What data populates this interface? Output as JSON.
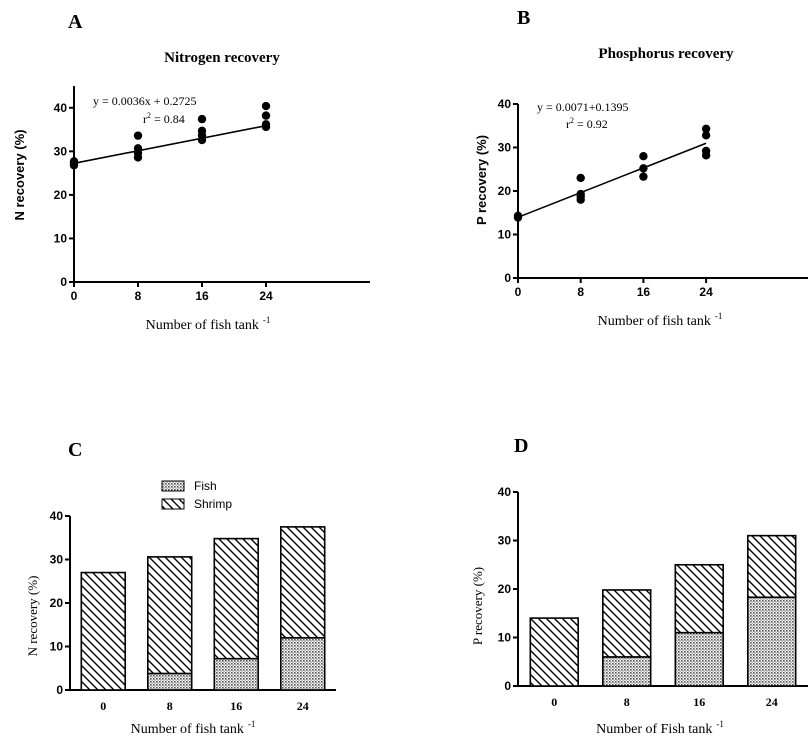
{
  "chart_data": [
    {
      "panel": "A",
      "type": "scatter",
      "title": "Nitrogen recovery",
      "xlabel": "Number of fish tank",
      "xlabel_sup": "-1",
      "ylabel": "N recovery (%)",
      "xlim": [
        0,
        37
      ],
      "ylim": [
        0,
        45
      ],
      "xticks": [
        0,
        8,
        16,
        24
      ],
      "yticks": [
        0,
        10,
        20,
        30,
        40
      ],
      "points": [
        [
          0,
          26.8
        ],
        [
          0,
          27.2
        ],
        [
          0,
          27.7
        ],
        [
          8,
          28.6
        ],
        [
          8,
          29.6
        ],
        [
          8,
          30.7
        ],
        [
          8,
          33.6
        ],
        [
          16,
          32.6
        ],
        [
          16,
          33.7
        ],
        [
          16,
          34.7
        ],
        [
          16,
          37.4
        ],
        [
          24,
          35.6
        ],
        [
          24,
          36.2
        ],
        [
          24,
          38.2
        ],
        [
          24,
          40.4
        ]
      ],
      "fit": {
        "slope": 0.0036,
        "intercept": 0.2725,
        "scale": 100
      },
      "equation": "y = 0.0036x + 0.2725",
      "r2_label": "r",
      "r2_value": " = 0.84"
    },
    {
      "panel": "B",
      "type": "scatter",
      "title": "Phosphorus recovery",
      "xlabel": "Number of fish tank",
      "xlabel_sup": "-1",
      "ylabel": "P recovery (%)",
      "xlim": [
        0,
        37
      ],
      "ylim": [
        0,
        40
      ],
      "xticks": [
        0,
        8,
        16,
        24
      ],
      "yticks": [
        0,
        10,
        20,
        30,
        40
      ],
      "points": [
        [
          0,
          13.9
        ],
        [
          0,
          14.3
        ],
        [
          8,
          18.0
        ],
        [
          8,
          18.7
        ],
        [
          8,
          19.3
        ],
        [
          8,
          23.0
        ],
        [
          16,
          23.3
        ],
        [
          16,
          25.2
        ],
        [
          16,
          28.0
        ],
        [
          24,
          28.2
        ],
        [
          24,
          29.2
        ],
        [
          24,
          32.8
        ],
        [
          24,
          34.3
        ]
      ],
      "fit": {
        "slope": 0.0071,
        "intercept": 0.1395,
        "scale": 100
      },
      "equation": "y = 0.0071+0.1395",
      "r2_label": "r",
      "r2_value": " = 0.92"
    },
    {
      "panel": "C",
      "type": "bar",
      "stacked": true,
      "xlabel": "Number of fish tank",
      "xlabel_sup": "-1",
      "ylabel": "N recovery (%)",
      "ylim": [
        0,
        40
      ],
      "yticks": [
        0,
        10,
        20,
        30,
        40
      ],
      "categories": [
        "0",
        "8",
        "16",
        "24"
      ],
      "series": [
        {
          "name": "Fish",
          "values": [
            0,
            3.8,
            7.2,
            12.0
          ]
        },
        {
          "name": "Shrimp",
          "values": [
            27.0,
            26.8,
            27.6,
            25.5
          ]
        }
      ],
      "legend": "top"
    },
    {
      "panel": "D",
      "type": "bar",
      "stacked": true,
      "xlabel": "Number of Fish tank",
      "xlabel_sup": "-1",
      "ylabel": "P recovery (%)",
      "ylim": [
        0,
        40
      ],
      "yticks": [
        0,
        10,
        20,
        30,
        40
      ],
      "categories": [
        "0",
        "8",
        "16",
        "24"
      ],
      "series": [
        {
          "name": "",
          "values": [
            0,
            6.0,
            11.0,
            18.3
          ]
        },
        {
          "name": "",
          "values": [
            14.0,
            13.8,
            14.0,
            12.7
          ]
        }
      ]
    }
  ]
}
